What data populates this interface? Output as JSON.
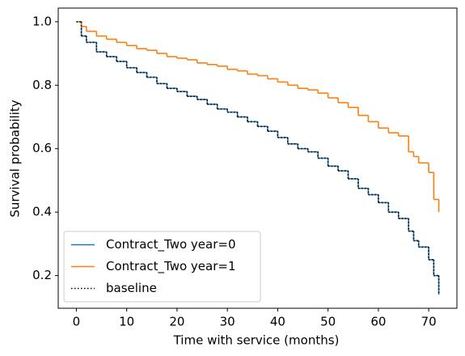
{
  "chart_data": {
    "type": "step",
    "xlabel": "Time with service (months)",
    "ylabel": "Survival probability",
    "x": [
      0,
      1,
      2,
      4,
      6,
      8,
      10,
      12,
      14,
      16,
      18,
      20,
      22,
      24,
      26,
      28,
      30,
      32,
      34,
      36,
      38,
      40,
      42,
      44,
      46,
      48,
      50,
      52,
      54,
      56,
      58,
      60,
      62,
      64,
      66,
      67,
      68,
      70,
      71,
      72
    ],
    "series": [
      {
        "name": "Contract_Two year=0",
        "color": "#1f77b4",
        "linestyle": "solid",
        "values": [
          1.0,
          0.955,
          0.935,
          0.905,
          0.89,
          0.875,
          0.855,
          0.84,
          0.825,
          0.805,
          0.79,
          0.78,
          0.765,
          0.755,
          0.74,
          0.725,
          0.715,
          0.7,
          0.685,
          0.67,
          0.655,
          0.635,
          0.615,
          0.6,
          0.59,
          0.57,
          0.545,
          0.53,
          0.505,
          0.475,
          0.455,
          0.43,
          0.4,
          0.38,
          0.34,
          0.31,
          0.29,
          0.25,
          0.2,
          0.14
        ]
      },
      {
        "name": "Contract_Two year=1",
        "color": "#ff7f0e",
        "linestyle": "solid",
        "values": [
          1.0,
          0.985,
          0.97,
          0.955,
          0.945,
          0.935,
          0.925,
          0.915,
          0.91,
          0.9,
          0.89,
          0.885,
          0.88,
          0.87,
          0.865,
          0.86,
          0.85,
          0.845,
          0.835,
          0.83,
          0.82,
          0.81,
          0.8,
          0.79,
          0.785,
          0.775,
          0.76,
          0.745,
          0.73,
          0.705,
          0.685,
          0.665,
          0.65,
          0.64,
          0.59,
          0.575,
          0.555,
          0.525,
          0.44,
          0.4
        ]
      },
      {
        "name": "baseline",
        "color": "#000000",
        "linestyle": "dotted",
        "values": [
          1.0,
          0.955,
          0.935,
          0.905,
          0.89,
          0.875,
          0.855,
          0.84,
          0.825,
          0.805,
          0.79,
          0.78,
          0.765,
          0.755,
          0.74,
          0.725,
          0.715,
          0.7,
          0.685,
          0.67,
          0.655,
          0.635,
          0.615,
          0.6,
          0.59,
          0.57,
          0.545,
          0.53,
          0.505,
          0.475,
          0.455,
          0.43,
          0.4,
          0.38,
          0.34,
          0.31,
          0.29,
          0.25,
          0.2,
          0.14
        ]
      }
    ],
    "xlim": [
      -3.6,
      75.6
    ],
    "xticks": [
      0,
      10,
      20,
      30,
      40,
      50,
      60,
      70
    ],
    "ylim": [
      0.097,
      1.043
    ],
    "yticks": [
      0.2,
      0.4,
      0.6,
      0.8,
      1.0
    ],
    "legend": "lower left",
    "grid": false
  }
}
